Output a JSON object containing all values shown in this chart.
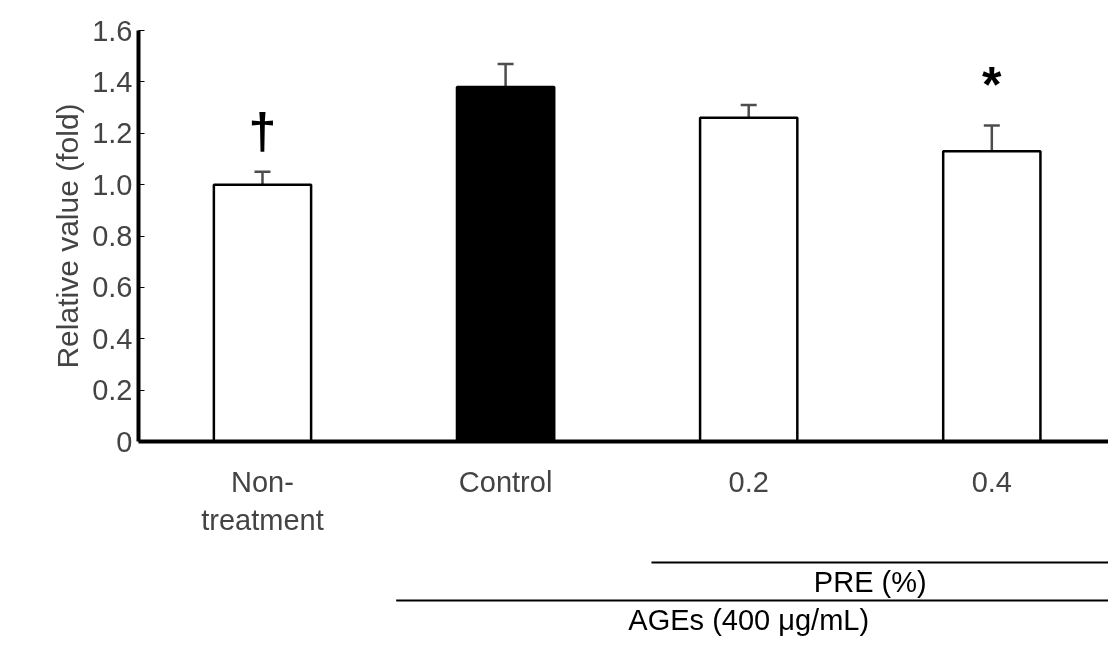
{
  "chart_data": {
    "type": "bar",
    "categories": [
      "Non-\ntreatment",
      "Control",
      "0.2",
      "0.4"
    ],
    "values": [
      1.0,
      1.38,
      1.26,
      1.13
    ],
    "errors": [
      0.05,
      0.09,
      0.05,
      0.1
    ],
    "colors": [
      "#ffffff",
      "#000000",
      "#ffffff",
      "#ffffff"
    ],
    "ylabel": "Relative value (fold)",
    "ylim": [
      0,
      1.6
    ],
    "yticks": [
      {
        "value": 0,
        "label": "0"
      },
      0.2,
      0.4,
      0.6,
      0.8,
      {
        "value": 1.0,
        "label": "1.0"
      },
      1.2,
      1.4,
      1.6
    ],
    "annotations": [
      "†",
      "*",
      "PRE (%)",
      "AGEs (400 μg/mL)"
    ],
    "grid": false
  }
}
